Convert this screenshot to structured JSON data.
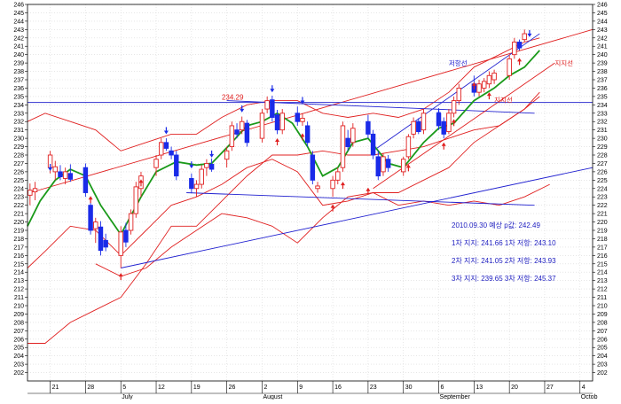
{
  "chart_data": {
    "type": "candlestick",
    "y_range": [
      201,
      246
    ],
    "y_ticks": [
      202,
      203,
      204,
      205,
      206,
      207,
      208,
      209,
      210,
      211,
      212,
      213,
      214,
      215,
      216,
      217,
      218,
      219,
      220,
      221,
      222,
      223,
      224,
      225,
      226,
      227,
      228,
      229,
      230,
      231,
      232,
      233,
      234,
      235,
      236,
      237,
      238,
      239,
      240,
      241,
      242,
      243,
      244,
      245,
      246
    ],
    "x_ticks": [
      {
        "label": "21",
        "day": 21
      },
      {
        "label": "28",
        "day": 28
      },
      {
        "label": "5",
        "day": 35
      },
      {
        "label": "12",
        "day": 42
      },
      {
        "label": "19",
        "day": 49
      },
      {
        "label": "26",
        "day": 56
      },
      {
        "label": "2",
        "day": 63
      },
      {
        "label": "9",
        "day": 70
      },
      {
        "label": "16",
        "day": 77
      },
      {
        "label": "23",
        "day": 84
      },
      {
        "label": "30",
        "day": 91
      },
      {
        "label": "6",
        "day": 98
      },
      {
        "label": "13",
        "day": 105
      },
      {
        "label": "20",
        "day": 112
      },
      {
        "label": "27",
        "day": 119
      },
      {
        "label": "4",
        "day": 126
      }
    ],
    "month_labels": [
      {
        "label": "July",
        "day": 35
      },
      {
        "label": "August",
        "day": 63
      },
      {
        "label": "September",
        "day": 98
      },
      {
        "label": "Octob",
        "day": 126
      }
    ],
    "day_range": [
      16.5,
      128.5
    ],
    "reference_line": {
      "value": 234.29,
      "label": "234.29"
    },
    "candles": [
      {
        "day": 17,
        "o": 223.2,
        "h": 224.6,
        "l": 222.0,
        "c": 223.8
      },
      {
        "day": 18,
        "o": 223.6,
        "h": 224.8,
        "l": 222.6,
        "c": 224.0
      },
      {
        "day": 21,
        "o": 226.5,
        "h": 228.5,
        "l": 225.8,
        "c": 228.0
      },
      {
        "day": 22,
        "o": 226.0,
        "h": 227.3,
        "l": 225.0,
        "c": 226.6
      },
      {
        "day": 23,
        "o": 226.0,
        "h": 226.8,
        "l": 225.0,
        "c": 225.4
      },
      {
        "day": 24,
        "o": 225.2,
        "h": 226.5,
        "l": 224.5,
        "c": 226.0
      },
      {
        "day": 25,
        "o": 225.8,
        "h": 226.9,
        "l": 224.8,
        "c": 225.1
      },
      {
        "day": 28,
        "o": 226.5,
        "h": 227.0,
        "l": 223.0,
        "c": 223.5
      },
      {
        "day": 29,
        "o": 222.0,
        "h": 222.8,
        "l": 218.5,
        "c": 219.0
      },
      {
        "day": 30,
        "o": 219.2,
        "h": 220.5,
        "l": 217.5,
        "c": 220.0
      },
      {
        "day": 31,
        "o": 219.4,
        "h": 220.1,
        "l": 216.0,
        "c": 216.6
      },
      {
        "day": 32,
        "o": 217.8,
        "h": 218.6,
        "l": 216.5,
        "c": 217.0
      },
      {
        "day": 35,
        "o": 216.0,
        "h": 219.5,
        "l": 214.5,
        "c": 218.8
      },
      {
        "day": 36,
        "o": 219.0,
        "h": 219.9,
        "l": 217.0,
        "c": 217.6
      },
      {
        "day": 37,
        "o": 219.0,
        "h": 221.5,
        "l": 218.5,
        "c": 221.0
      },
      {
        "day": 38,
        "o": 221.0,
        "h": 224.8,
        "l": 220.5,
        "c": 224.2
      },
      {
        "day": 39,
        "o": 224.0,
        "h": 226.0,
        "l": 223.0,
        "c": 225.5
      },
      {
        "day": 42,
        "o": 226.5,
        "h": 228.0,
        "l": 225.5,
        "c": 227.5
      },
      {
        "day": 43,
        "o": 228.0,
        "h": 230.0,
        "l": 227.5,
        "c": 229.5
      },
      {
        "day": 44,
        "o": 229.5,
        "h": 230.0,
        "l": 228.5,
        "c": 228.8
      },
      {
        "day": 45,
        "o": 228.5,
        "h": 229.0,
        "l": 227.5,
        "c": 228.0
      },
      {
        "day": 46,
        "o": 228.0,
        "h": 228.5,
        "l": 225.0,
        "c": 225.5
      },
      {
        "day": 49,
        "o": 225.2,
        "h": 225.8,
        "l": 223.5,
        "c": 224.0
      },
      {
        "day": 50,
        "o": 224.0,
        "h": 225.0,
        "l": 223.0,
        "c": 224.5
      },
      {
        "day": 51,
        "o": 224.5,
        "h": 226.8,
        "l": 224.0,
        "c": 226.3
      },
      {
        "day": 52,
        "o": 226.5,
        "h": 227.5,
        "l": 225.5,
        "c": 227.0
      },
      {
        "day": 53,
        "o": 226.9,
        "h": 227.6,
        "l": 226.0,
        "c": 226.3
      },
      {
        "day": 56,
        "o": 227.5,
        "h": 229.0,
        "l": 226.5,
        "c": 228.5
      },
      {
        "day": 57,
        "o": 229.0,
        "h": 232.0,
        "l": 228.5,
        "c": 231.5
      },
      {
        "day": 58,
        "o": 231.0,
        "h": 231.8,
        "l": 230.0,
        "c": 230.5
      },
      {
        "day": 59,
        "o": 231.0,
        "h": 232.6,
        "l": 230.5,
        "c": 232.0
      },
      {
        "day": 60,
        "o": 231.8,
        "h": 232.2,
        "l": 229.0,
        "c": 229.5
      },
      {
        "day": 63,
        "o": 230.0,
        "h": 233.5,
        "l": 229.5,
        "c": 233.0
      },
      {
        "day": 64,
        "o": 233.5,
        "h": 235.0,
        "l": 233.0,
        "c": 234.5
      },
      {
        "day": 65,
        "o": 234.6,
        "h": 235.1,
        "l": 232.0,
        "c": 232.5
      },
      {
        "day": 66,
        "o": 232.8,
        "h": 233.4,
        "l": 230.5,
        "c": 231.0
      },
      {
        "day": 67,
        "o": 231.0,
        "h": 233.5,
        "l": 230.5,
        "c": 233.0
      },
      {
        "day": 70,
        "o": 233.0,
        "h": 233.8,
        "l": 231.5,
        "c": 232.0
      },
      {
        "day": 71,
        "o": 232.0,
        "h": 233.0,
        "l": 231.5,
        "c": 232.4
      },
      {
        "day": 72,
        "o": 231.5,
        "h": 232.0,
        "l": 229.0,
        "c": 229.5
      },
      {
        "day": 73,
        "o": 228.0,
        "h": 228.5,
        "l": 224.5,
        "c": 225.0
      },
      {
        "day": 74,
        "o": 224.0,
        "h": 224.8,
        "l": 223.5,
        "c": 224.3
      },
      {
        "day": 77,
        "o": 224.0,
        "h": 225.5,
        "l": 223.0,
        "c": 225.0
      },
      {
        "day": 78,
        "o": 225.0,
        "h": 226.5,
        "l": 224.5,
        "c": 226.0
      },
      {
        "day": 79,
        "o": 226.5,
        "h": 232.0,
        "l": 226.0,
        "c": 231.5
      },
      {
        "day": 80,
        "o": 230.0,
        "h": 231.0,
        "l": 228.5,
        "c": 229.0
      },
      {
        "day": 81,
        "o": 229.5,
        "h": 231.8,
        "l": 229.0,
        "c": 231.2
      },
      {
        "day": 84,
        "o": 232.0,
        "h": 232.8,
        "l": 230.0,
        "c": 230.5
      },
      {
        "day": 85,
        "o": 230.5,
        "h": 231.0,
        "l": 227.5,
        "c": 228.0
      },
      {
        "day": 86,
        "o": 227.8,
        "h": 228.5,
        "l": 225.0,
        "c": 225.5
      },
      {
        "day": 87,
        "o": 226.0,
        "h": 228.2,
        "l": 225.5,
        "c": 227.8
      },
      {
        "day": 88,
        "o": 227.5,
        "h": 228.0,
        "l": 226.0,
        "c": 226.5
      },
      {
        "day": 91,
        "o": 226.0,
        "h": 227.8,
        "l": 225.5,
        "c": 227.5
      },
      {
        "day": 92,
        "o": 227.8,
        "h": 230.5,
        "l": 227.5,
        "c": 230.2
      },
      {
        "day": 93,
        "o": 230.5,
        "h": 232.5,
        "l": 230.0,
        "c": 232.0
      },
      {
        "day": 94,
        "o": 232.0,
        "h": 232.4,
        "l": 230.5,
        "c": 230.8
      },
      {
        "day": 95,
        "o": 231.0,
        "h": 233.5,
        "l": 230.5,
        "c": 233.0
      },
      {
        "day": 98,
        "o": 233.0,
        "h": 233.6,
        "l": 231.0,
        "c": 231.5
      },
      {
        "day": 99,
        "o": 232.0,
        "h": 232.5,
        "l": 230.0,
        "c": 230.5
      },
      {
        "day": 100,
        "o": 230.8,
        "h": 233.5,
        "l": 230.5,
        "c": 233.0
      },
      {
        "day": 101,
        "o": 233.0,
        "h": 235.0,
        "l": 232.5,
        "c": 234.5
      },
      {
        "day": 102,
        "o": 234.5,
        "h": 236.5,
        "l": 234.0,
        "c": 236.0
      },
      {
        "day": 105,
        "o": 236.5,
        "h": 237.5,
        "l": 235.0,
        "c": 235.5
      },
      {
        "day": 106,
        "o": 235.5,
        "h": 237.0,
        "l": 235.0,
        "c": 236.5
      },
      {
        "day": 107,
        "o": 236.0,
        "h": 237.2,
        "l": 235.5,
        "c": 236.8
      },
      {
        "day": 108,
        "o": 236.5,
        "h": 238.0,
        "l": 236.0,
        "c": 237.5
      },
      {
        "day": 109,
        "o": 237.0,
        "h": 238.2,
        "l": 236.5,
        "c": 237.8
      },
      {
        "day": 112,
        "o": 237.5,
        "h": 240.0,
        "l": 237.0,
        "c": 239.5
      },
      {
        "day": 113,
        "o": 240.0,
        "h": 242.0,
        "l": 239.5,
        "c": 241.5
      },
      {
        "day": 114,
        "o": 241.5,
        "h": 241.8,
        "l": 240.5,
        "c": 240.8
      },
      {
        "day": 115,
        "o": 241.8,
        "h": 243.0,
        "l": 241.5,
        "c": 242.5
      }
    ],
    "arrows": [
      {
        "day": 21,
        "value": 226.2,
        "dir": "down"
      },
      {
        "day": 29,
        "value": 223.0,
        "dir": "up"
      },
      {
        "day": 35,
        "value": 213.8,
        "dir": "up"
      },
      {
        "day": 39,
        "value": 225.0,
        "dir": "up"
      },
      {
        "day": 44,
        "value": 230.6,
        "dir": "down"
      },
      {
        "day": 49,
        "value": 226.5,
        "dir": "down"
      },
      {
        "day": 53,
        "value": 227.8,
        "dir": "down"
      },
      {
        "day": 59,
        "value": 233.2,
        "dir": "down"
      },
      {
        "day": 66,
        "value": 229.9,
        "dir": "up"
      },
      {
        "day": 65,
        "value": 235.6,
        "dir": "down"
      },
      {
        "day": 71,
        "value": 230.5,
        "dir": "up"
      },
      {
        "day": 71,
        "value": 234.2,
        "dir": "down"
      },
      {
        "day": 77,
        "value": 222.0,
        "dir": "up"
      },
      {
        "day": 79,
        "value": 224.7,
        "dir": "up"
      },
      {
        "day": 84,
        "value": 224.0,
        "dir": "up"
      },
      {
        "day": 92,
        "value": 226.8,
        "dir": "up"
      },
      {
        "day": 98,
        "value": 232.8,
        "dir": "down"
      },
      {
        "day": 99,
        "value": 229.4,
        "dir": "up"
      },
      {
        "day": 101,
        "value": 232.2,
        "dir": "up"
      },
      {
        "day": 105,
        "value": 236.6,
        "dir": "up"
      },
      {
        "day": 108,
        "value": 235.4,
        "dir": "up"
      },
      {
        "day": 114,
        "value": 239.5,
        "dir": "up"
      },
      {
        "day": 116,
        "value": 242.2,
        "dir": "down"
      }
    ],
    "ma_line": [
      [
        16.5,
        219.5
      ],
      [
        19,
        222.5
      ],
      [
        22,
        225.0
      ],
      [
        25,
        226.3
      ],
      [
        28,
        225.5
      ],
      [
        31,
        222.0
      ],
      [
        35,
        218.5
      ],
      [
        39,
        223.0
      ],
      [
        42,
        226.0
      ],
      [
        46,
        227.2
      ],
      [
        50,
        226.8
      ],
      [
        53,
        227.0
      ],
      [
        57,
        229.5
      ],
      [
        60,
        231.5
      ],
      [
        63,
        232.0
      ],
      [
        66,
        233.0
      ],
      [
        69,
        231.8
      ],
      [
        72,
        229.0
      ],
      [
        75,
        225.5
      ],
      [
        78,
        226.5
      ],
      [
        81,
        229.5
      ],
      [
        84,
        230.0
      ],
      [
        88,
        227.0
      ],
      [
        91,
        226.5
      ],
      [
        95,
        229.5
      ],
      [
        98,
        231.2
      ],
      [
        101,
        231.8
      ],
      [
        105,
        234.5
      ],
      [
        109,
        236.0
      ],
      [
        112,
        237.5
      ],
      [
        115,
        238.5
      ],
      [
        118,
        240.5
      ]
    ],
    "bands": [
      [
        [
          16.5,
          214.5
        ],
        [
          20,
          216.5
        ],
        [
          25,
          219.5
        ],
        [
          30,
          219.0
        ],
        [
          35,
          216.0
        ],
        [
          40,
          219.0
        ],
        [
          45,
          222.0
        ],
        [
          50,
          223.0
        ],
        [
          55,
          224.5
        ],
        [
          60,
          226.5
        ],
        [
          65,
          227.5
        ],
        [
          70,
          226.0
        ],
        [
          75,
          222.0
        ],
        [
          80,
          222.5
        ],
        [
          85,
          223.5
        ],
        [
          90,
          223.5
        ],
        [
          95,
          225.0
        ],
        [
          100,
          226.5
        ],
        [
          105,
          229.5
        ],
        [
          110,
          231.5
        ],
        [
          115,
          233.5
        ],
        [
          118,
          235.0
        ]
      ],
      [
        [
          16.5,
          232.0
        ],
        [
          20,
          233.0
        ],
        [
          25,
          232.0
        ],
        [
          30,
          231.0
        ],
        [
          35,
          228.5
        ],
        [
          40,
          229.5
        ],
        [
          45,
          230.5
        ],
        [
          50,
          230.5
        ],
        [
          55,
          232.5
        ],
        [
          60,
          234.0
        ],
        [
          65,
          234.5
        ],
        [
          70,
          234.5
        ],
        [
          75,
          233.0
        ],
        [
          80,
          232.5
        ],
        [
          85,
          233.0
        ],
        [
          90,
          232.5
        ],
        [
          95,
          233.5
        ],
        [
          100,
          235.5
        ],
        [
          105,
          238.5
        ],
        [
          110,
          240.0
        ],
        [
          115,
          241.5
        ],
        [
          118,
          242.0
        ]
      ],
      [
        [
          16.5,
          205.5
        ],
        [
          20,
          205.5
        ],
        [
          25,
          208.0
        ],
        [
          30,
          209.5
        ],
        [
          35,
          211.0
        ],
        [
          40,
          215.0
        ],
        [
          45,
          219.5
        ],
        [
          50,
          219.5
        ],
        [
          55,
          222.5
        ],
        [
          60,
          225.5
        ],
        [
          65,
          228.0
        ],
        [
          70,
          228.0
        ],
        [
          75,
          228.5
        ],
        [
          80,
          228.0
        ],
        [
          85,
          228.0
        ],
        [
          90,
          228.5
        ],
        [
          95,
          229.0
        ],
        [
          100,
          230.0
        ],
        [
          105,
          231.0
        ],
        [
          110,
          231.5
        ],
        [
          115,
          233.5
        ],
        [
          118,
          235.5
        ]
      ],
      [
        [
          30,
          215.0
        ],
        [
          35,
          213.5
        ],
        [
          40,
          214.5
        ],
        [
          45,
          217.0
        ],
        [
          50,
          219.0
        ],
        [
          55,
          221.0
        ],
        [
          60,
          220.5
        ],
        [
          65,
          219.5
        ],
        [
          70,
          217.5
        ],
        [
          75,
          220.5
        ],
        [
          80,
          223.0
        ],
        [
          85,
          223.5
        ],
        [
          90,
          222.0
        ],
        [
          95,
          222.5
        ],
        [
          100,
          222.0
        ],
        [
          105,
          222.5
        ],
        [
          110,
          222.0
        ],
        [
          115,
          223.0
        ],
        [
          120,
          224.5
        ]
      ]
    ],
    "trend_lines": [
      {
        "from": [
          17,
          223.5
        ],
        "to": [
          128.5,
          243.0
        ],
        "color": "#e02020"
      },
      {
        "from": [
          35,
          214.5
        ],
        "to": [
          128.5,
          226.5
        ],
        "color": "#2020d0"
      },
      {
        "from": [
          48,
          223.5
        ],
        "to": [
          117,
          222.0
        ],
        "color": "#2020d0"
      },
      {
        "from": [
          56,
          234.5
        ],
        "to": [
          117,
          233.0
        ],
        "color": "#2020d0"
      },
      {
        "from": [
          85,
          224.0
        ],
        "to": [
          121,
          239.0
        ],
        "color": "#e02020"
      },
      {
        "from": [
          85,
          228.5
        ],
        "to": [
          118,
          242.5
        ],
        "color": "#2020d0"
      }
    ],
    "channel_labels": [
      {
        "text": "저항선",
        "day": 100,
        "value": 238.7,
        "color": "#2020d0"
      },
      {
        "text": "지지선",
        "day": 121,
        "value": 238.7,
        "color": "#e02020"
      },
      {
        "text": "지지선",
        "day": 109,
        "value": 234.3,
        "color": "#e02020"
      }
    ],
    "forecast": {
      "date_line": "2010.09.30 예상  p값: 242.49",
      "row1": "1차 지지: 241.66  1차 저항: 243.10",
      "row2": "2차 지지: 241.05  2차 저항: 243.93",
      "row3": "3차 지지: 239.65  3차 저항: 245.37"
    },
    "colors": {
      "up": "#e02020",
      "down": "#1a2be8",
      "ma": "#1a9a1a",
      "band": "#e02020",
      "ref_line": "#3030d0",
      "text_blue": "#2020c0"
    }
  }
}
